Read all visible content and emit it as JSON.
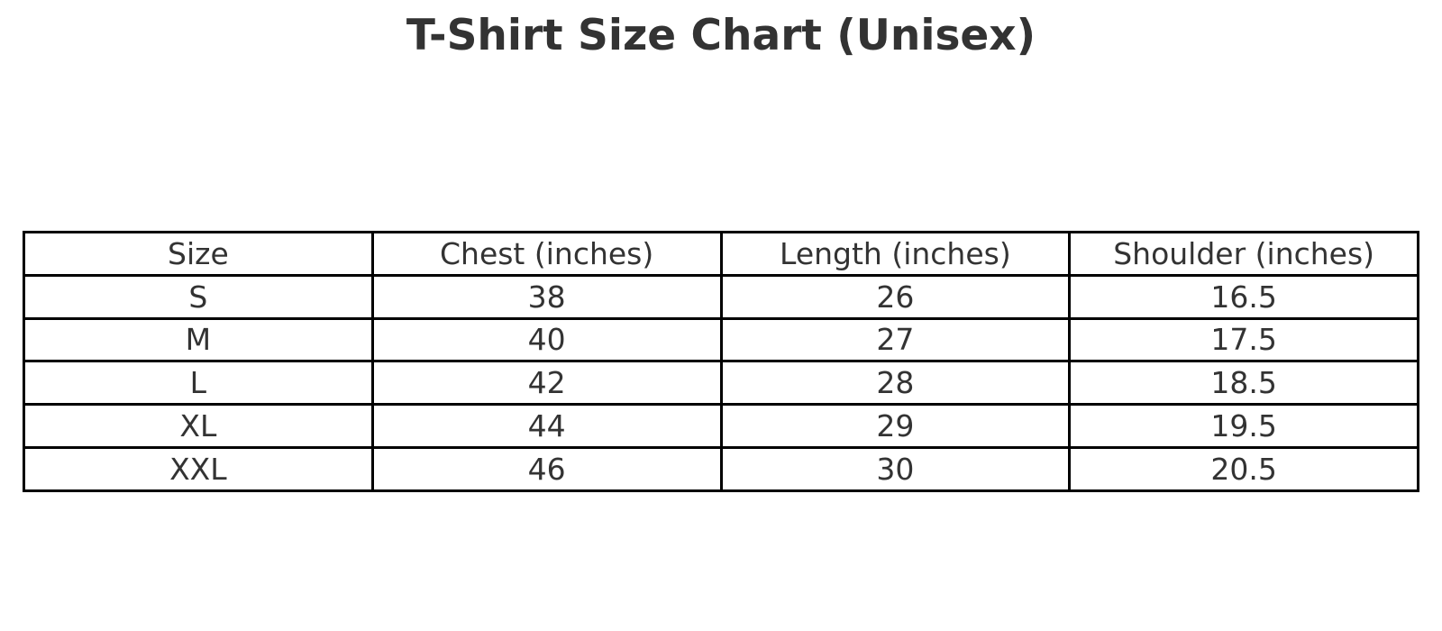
{
  "figure": {
    "title": "T-Shirt Size Chart (Unisex)"
  },
  "chart_data": {
    "type": "table",
    "title": "T-Shirt Size Chart (Unisex)",
    "columns": [
      "Size",
      "Chest (inches)",
      "Length (inches)",
      "Shoulder (inches)"
    ],
    "rows": [
      [
        "S",
        "38",
        "26",
        "16.5"
      ],
      [
        "M",
        "40",
        "27",
        "17.5"
      ],
      [
        "L",
        "42",
        "28",
        "18.5"
      ],
      [
        "XL",
        "44",
        "29",
        "19.5"
      ],
      [
        "XXL",
        "46",
        "30",
        "20.5"
      ]
    ],
    "layout": {
      "grid": "full-borders",
      "header_position": "top",
      "text_align": "center"
    }
  },
  "colors": {
    "text": "#333333",
    "border": "#000000",
    "background": "#ffffff"
  }
}
